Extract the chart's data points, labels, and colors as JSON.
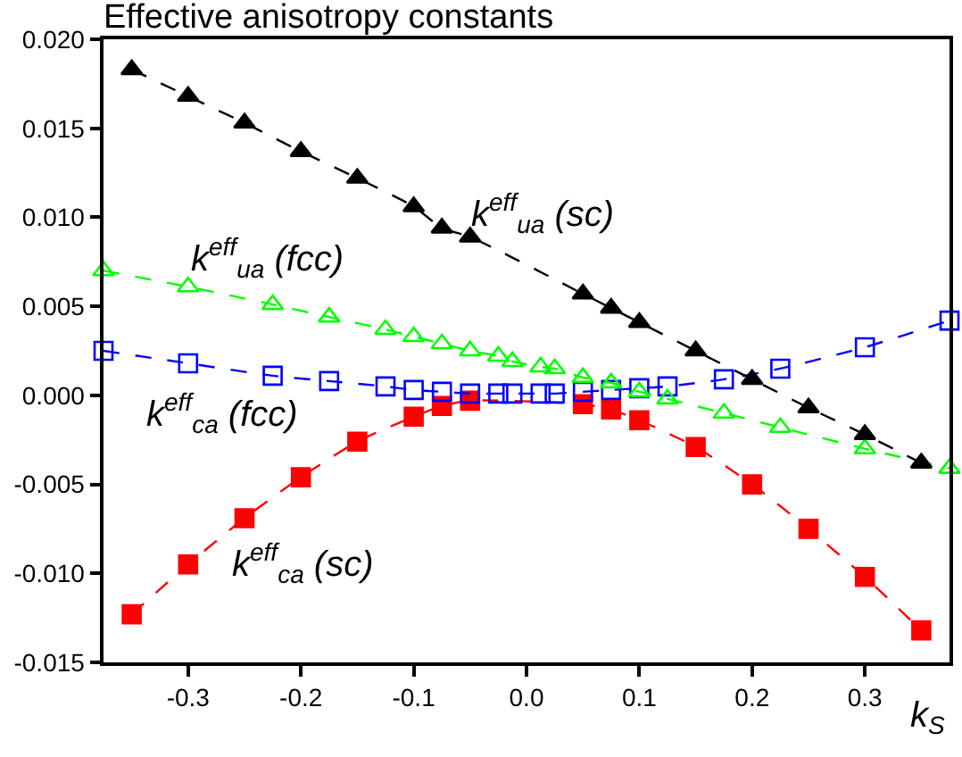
{
  "chart_data": {
    "type": "line",
    "title": "Effective anisotropy constants",
    "xlabel": "k$_{S}$",
    "xlim": [
      -0.375,
      0.375
    ],
    "xticks": [
      {
        "value": -0.3,
        "label": "-0.3"
      },
      {
        "value": -0.2,
        "label": "-0.2"
      },
      {
        "value": -0.1,
        "label": "-0.1"
      },
      {
        "value": 0,
        "label": "0.0"
      },
      {
        "value": 0.1,
        "label": "0.1"
      },
      {
        "value": 0.2,
        "label": "0.2"
      },
      {
        "value": 0.3,
        "label": "0.3"
      }
    ],
    "ylim": [
      -0.015,
      0.02
    ],
    "yticks": [
      {
        "value": -0.015,
        "label": "-0.015"
      },
      {
        "value": -0.01,
        "label": "-0.010"
      },
      {
        "value": -0.005,
        "label": "-0.005"
      },
      {
        "value": 0,
        "label": "0.000"
      },
      {
        "value": 0.005,
        "label": "0.005"
      },
      {
        "value": 0.01,
        "label": "0.010"
      },
      {
        "value": 0.015,
        "label": "0.015"
      },
      {
        "value": 0.02,
        "label": "0.020"
      }
    ],
    "grid": false,
    "legend": false,
    "line_style": "dashed",
    "series": [
      {
        "name": "k$^{eff}$$_{ua}$ (sc)",
        "color": "#000000",
        "marker": "triangle",
        "x": [
          -0.35,
          -0.3,
          -0.25,
          -0.2,
          -0.15,
          -0.1,
          -0.075,
          -0.05,
          0.05,
          0.075,
          0.1,
          0.15,
          0.2,
          0.25,
          0.3,
          0.35
        ],
        "values": [
          0.0183,
          0.0168,
          0.0153,
          0.0137,
          0.0122,
          0.0106,
          0.0094,
          0.0089,
          0.0057,
          0.0049,
          0.0041,
          0.0025,
          0.0009,
          -0.0007,
          -0.0022,
          -0.0038
        ]
      },
      {
        "name": "k$^{eff}$$_{ua}$ (fcc)",
        "color": "#00ff00",
        "marker": "triangle-open",
        "x": [
          -0.375,
          -0.3,
          -0.225,
          -0.175,
          -0.125,
          -0.1,
          -0.075,
          -0.05,
          -0.025,
          -0.0125,
          0.0125,
          0.025,
          0.05,
          0.075,
          0.1,
          0.125,
          0.175,
          0.225,
          0.3,
          0.375
        ],
        "values": [
          0.007,
          0.0061,
          0.0051,
          0.0044,
          0.0037,
          0.0033,
          0.0029,
          0.0025,
          0.0022,
          0.0019,
          0.0016,
          0.0015,
          0.001,
          0.0007,
          0.0002,
          -0.0002,
          -0.001,
          -0.0018,
          -0.003,
          -0.0041
        ]
      },
      {
        "name": "k$^{eff}$$_{ca}$ (fcc)",
        "color": "#0000ff",
        "marker": "square-open",
        "x": [
          -0.375,
          -0.3,
          -0.225,
          -0.175,
          -0.125,
          -0.1,
          -0.075,
          -0.05,
          -0.025,
          -0.0125,
          0.0125,
          0.025,
          0.05,
          0.075,
          0.1,
          0.125,
          0.175,
          0.225,
          0.3,
          0.375
        ],
        "values": [
          0.0025,
          0.0018,
          0.0011,
          0.0008,
          0.0005,
          0.0003,
          0.0002,
          0.0001,
          0.0001,
          0.0001,
          0.0001,
          0.0001,
          0.0002,
          0.0003,
          0.0004,
          0.0005,
          0.0009,
          0.0015,
          0.0027,
          0.0042
        ]
      },
      {
        "name": "k$^{eff}$$_{ca}$ (sc)",
        "color": "#ff0000",
        "marker": "square",
        "x": [
          -0.35,
          -0.3,
          -0.25,
          -0.2,
          -0.15,
          -0.1,
          -0.075,
          -0.05,
          0.05,
          0.075,
          0.1,
          0.15,
          0.2,
          0.25,
          0.3,
          0.35
        ],
        "values": [
          -0.0123,
          -0.0095,
          -0.0069,
          -0.0046,
          -0.0026,
          -0.0012,
          -0.0006,
          -0.0003,
          -0.0005,
          -0.0008,
          -0.0014,
          -0.0029,
          -0.005,
          -0.0075,
          -0.0102,
          -0.0132
        ]
      }
    ]
  }
}
